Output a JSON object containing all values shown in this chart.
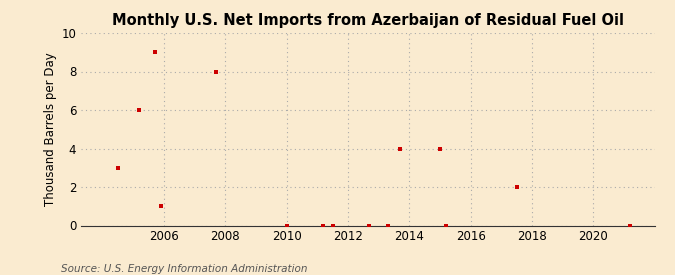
{
  "title": "Monthly U.S. Net Imports from Azerbaijan of Residual Fuel Oil",
  "ylabel": "Thousand Barrels per Day",
  "source": "Source: U.S. Energy Information Administration",
  "background_color": "#faebd0",
  "marker_color": "#cc0000",
  "xlim": [
    2003.3,
    2022.0
  ],
  "ylim": [
    0,
    10
  ],
  "yticks": [
    0,
    2,
    4,
    6,
    8,
    10
  ],
  "xticks": [
    2006,
    2008,
    2010,
    2012,
    2014,
    2016,
    2018,
    2020
  ],
  "data_x": [
    2004.5,
    2005.2,
    2005.7,
    2005.9,
    2007.7,
    2010.0,
    2011.2,
    2011.5,
    2012.7,
    2013.3,
    2013.7,
    2015.0,
    2015.2,
    2017.5,
    2021.2
  ],
  "data_y": [
    3,
    6,
    9,
    1,
    8,
    0,
    0,
    0,
    0,
    0,
    4,
    4,
    0,
    2,
    0
  ],
  "title_fontsize": 10.5,
  "label_fontsize": 8.5,
  "tick_fontsize": 8.5,
  "source_fontsize": 7.5
}
